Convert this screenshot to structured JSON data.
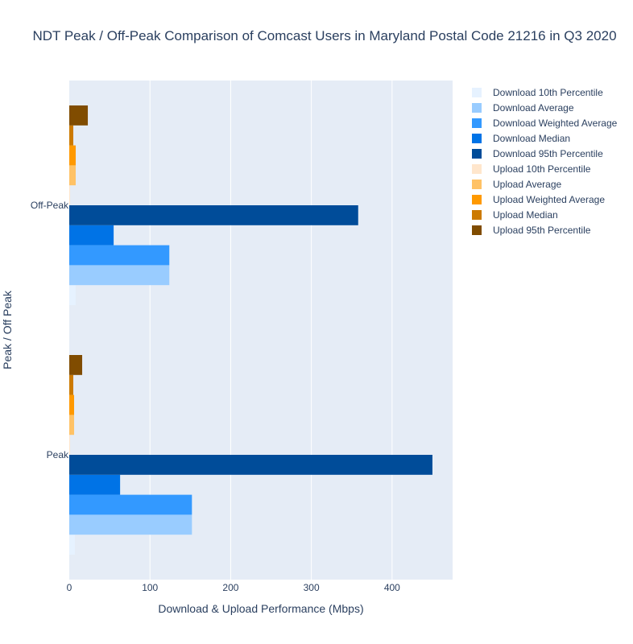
{
  "chart_data": {
    "type": "bar",
    "orientation": "horizontal",
    "title": "NDT Peak / Off-Peak Comparison of Comcast Users in Maryland Postal Code 21216 in Q3 2020",
    "xlabel": "Download & Upload Performance (Mbps)",
    "ylabel": "Peak / Off Peak",
    "categories": [
      "Peak",
      "Off-Peak"
    ],
    "xlim": [
      0,
      475
    ],
    "xticks": [
      0,
      100,
      200,
      300,
      400
    ],
    "grid": true,
    "legend_position": "right",
    "series": [
      {
        "name": "Download 10th Percentile",
        "color": "#e6f2ff",
        "values": [
          7,
          8
        ]
      },
      {
        "name": "Download Average",
        "color": "#99ccff",
        "values": [
          152,
          124
        ]
      },
      {
        "name": "Download Weighted Average",
        "color": "#3399ff",
        "values": [
          152,
          124
        ]
      },
      {
        "name": "Download Median",
        "color": "#0073e6",
        "values": [
          63,
          55
        ]
      },
      {
        "name": "Download 95th Percentile",
        "color": "#004c99",
        "values": [
          450,
          358
        ]
      },
      {
        "name": "Upload 10th Percentile",
        "color": "#ffe6cc",
        "values": [
          1,
          1
        ]
      },
      {
        "name": "Upload Average",
        "color": "#ffc266",
        "values": [
          6,
          8
        ]
      },
      {
        "name": "Upload Weighted Average",
        "color": "#ff9900",
        "values": [
          6,
          8
        ]
      },
      {
        "name": "Upload Median",
        "color": "#cc7a00",
        "values": [
          5,
          5
        ]
      },
      {
        "name": "Upload 95th Percentile",
        "color": "#804c00",
        "values": [
          16,
          23
        ]
      }
    ]
  },
  "colors": {
    "plot_background": "#e5ecf6",
    "grid": "#ffffff",
    "text": "#2a3f5f"
  }
}
